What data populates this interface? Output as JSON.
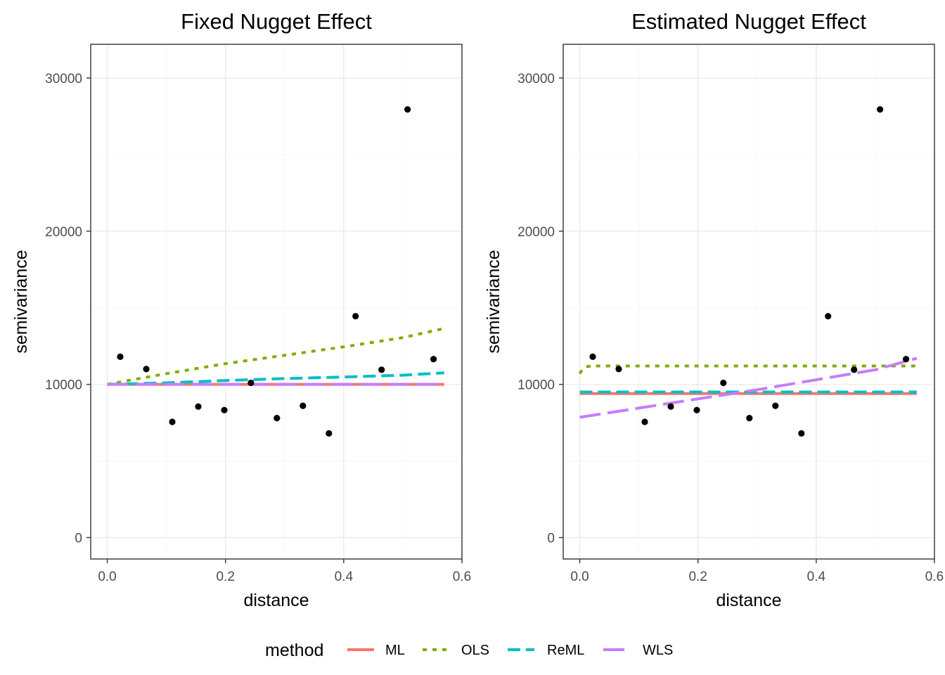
{
  "chart_data": [
    {
      "type": "line",
      "title": "Fixed Nugget Effect",
      "xlabel": "distance",
      "ylabel": "semivariance",
      "xlim": [
        -0.028,
        0.6
      ],
      "ylim": [
        -1400,
        32200
      ],
      "xticks": [
        "0.0",
        "0.2",
        "0.4",
        "0.6"
      ],
      "yticks": [
        "0",
        "10000",
        "20000",
        "30000"
      ],
      "xtick_values": [
        0,
        0.2,
        0.4,
        0.6
      ],
      "ytick_values": [
        0,
        10000,
        20000,
        30000
      ],
      "grid": true,
      "points": {
        "x": [
          0.022,
          0.066,
          0.11,
          0.154,
          0.198,
          0.243,
          0.287,
          0.331,
          0.375,
          0.42,
          0.464,
          0.508,
          0.552
        ],
        "y": [
          11800,
          11000,
          7550,
          8550,
          8320,
          10100,
          7800,
          8600,
          6800,
          14450,
          10950,
          27950,
          11650
        ]
      },
      "series": [
        {
          "name": "ML",
          "x": [
            0,
            0.57
          ],
          "y": [
            10000,
            10000
          ]
        },
        {
          "name": "OLS",
          "x": [
            0,
            0.1,
            0.2,
            0.3,
            0.4,
            0.5,
            0.57
          ],
          "y": [
            10000,
            10700,
            11350,
            11900,
            12450,
            13050,
            13650
          ]
        },
        {
          "name": "ReML",
          "x": [
            0,
            0.1,
            0.2,
            0.3,
            0.4,
            0.5,
            0.57
          ],
          "y": [
            10000,
            10100,
            10250,
            10380,
            10480,
            10600,
            10750
          ]
        },
        {
          "name": "WLS",
          "x": [
            0,
            0.57
          ],
          "y": [
            10000,
            10000
          ]
        }
      ]
    },
    {
      "type": "line",
      "title": "Estimated Nugget Effect",
      "xlabel": "distance",
      "ylabel": "semivariance",
      "xlim": [
        -0.028,
        0.6
      ],
      "ylim": [
        -1400,
        32200
      ],
      "xticks": [
        "0.0",
        "0.2",
        "0.4",
        "0.6"
      ],
      "yticks": [
        "0",
        "10000",
        "20000",
        "30000"
      ],
      "xtick_values": [
        0,
        0.2,
        0.4,
        0.6
      ],
      "ytick_values": [
        0,
        10000,
        20000,
        30000
      ],
      "grid": true,
      "points": {
        "x": [
          0.022,
          0.066,
          0.11,
          0.154,
          0.198,
          0.243,
          0.287,
          0.331,
          0.375,
          0.42,
          0.464,
          0.508,
          0.552
        ],
        "y": [
          11800,
          11000,
          7550,
          8550,
          8320,
          10100,
          7800,
          8600,
          6800,
          14450,
          10950,
          27950,
          11650
        ]
      },
      "series": [
        {
          "name": "ML",
          "x": [
            0,
            0.57
          ],
          "y": [
            9400,
            9400
          ]
        },
        {
          "name": "OLS",
          "x": [
            0,
            0.005,
            0.01,
            0.02,
            0.05,
            0.57
          ],
          "y": [
            10700,
            11000,
            11150,
            11200,
            11200,
            11200
          ]
        },
        {
          "name": "ReML",
          "x": [
            0,
            0.57
          ],
          "y": [
            9500,
            9500
          ]
        },
        {
          "name": "WLS",
          "x": [
            0,
            0.1,
            0.2,
            0.3,
            0.4,
            0.5,
            0.57
          ],
          "y": [
            7850,
            8450,
            9050,
            9650,
            10300,
            10950,
            11700
          ]
        }
      ]
    }
  ],
  "legend": {
    "title": "method",
    "placement": "bottom",
    "items": [
      {
        "label": "ML",
        "color": "#F8766D",
        "dash": "solid"
      },
      {
        "label": "OLS",
        "color": "#7CAE00",
        "dash": "dotted"
      },
      {
        "label": "ReML",
        "color": "#00BFC4",
        "dash": "dashed"
      },
      {
        "label": "WLS",
        "color": "#C77CFF",
        "dash": "longdash"
      }
    ]
  },
  "point_color": "#000000"
}
